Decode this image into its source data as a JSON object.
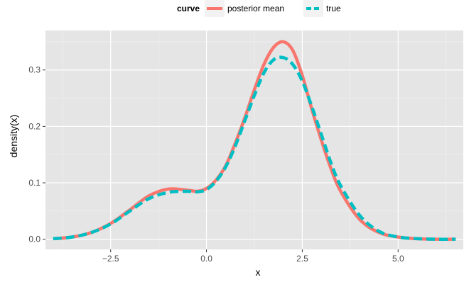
{
  "chart_data": {
    "type": "line",
    "xlabel": "x",
    "ylabel": "density(x)",
    "xlim": [
      -4.2,
      6.7
    ],
    "ylim": [
      -0.018,
      0.37
    ],
    "x_ticks": [
      -2.5,
      0.0,
      2.5,
      5.0
    ],
    "x_tick_labels": [
      "−2.5",
      "0.0",
      "2.5",
      "5.0"
    ],
    "y_ticks": [
      0.0,
      0.1,
      0.2,
      0.3
    ],
    "y_tick_labels": [
      "0.0",
      "0.1",
      "0.2",
      "0.3"
    ],
    "grid": true,
    "legend": {
      "title": "curve",
      "position": "top",
      "entries": [
        "posterior mean",
        "true"
      ]
    },
    "series": [
      {
        "name": "posterior mean",
        "color": "#F8766D",
        "dash": "solid",
        "x": [
          -4.0,
          -3.5,
          -3.0,
          -2.5,
          -2.0,
          -1.5,
          -1.0,
          -0.5,
          -0.25,
          0.0,
          0.25,
          0.5,
          0.75,
          1.0,
          1.25,
          1.5,
          1.75,
          2.0,
          2.25,
          2.5,
          2.75,
          3.0,
          3.25,
          3.5,
          4.0,
          4.5,
          5.0,
          5.5,
          6.0,
          6.5
        ],
        "y": [
          0.001,
          0.004,
          0.012,
          0.028,
          0.052,
          0.077,
          0.089,
          0.087,
          0.085,
          0.09,
          0.105,
          0.13,
          0.17,
          0.215,
          0.265,
          0.31,
          0.34,
          0.35,
          0.335,
          0.29,
          0.23,
          0.175,
          0.125,
          0.085,
          0.035,
          0.012,
          0.004,
          0.001,
          0.0,
          0.0
        ]
      },
      {
        "name": "true",
        "color": "#00BFC4",
        "dash": "dashed",
        "x": [
          -4.0,
          -3.5,
          -3.0,
          -2.5,
          -2.0,
          -1.5,
          -1.0,
          -0.5,
          -0.25,
          0.0,
          0.25,
          0.5,
          0.75,
          1.0,
          1.25,
          1.5,
          1.75,
          2.0,
          2.25,
          2.5,
          2.75,
          3.0,
          3.25,
          3.5,
          4.0,
          4.5,
          5.0,
          5.5,
          6.0,
          6.5
        ],
        "y": [
          0.001,
          0.004,
          0.012,
          0.027,
          0.05,
          0.072,
          0.083,
          0.085,
          0.084,
          0.088,
          0.103,
          0.128,
          0.165,
          0.21,
          0.255,
          0.295,
          0.318,
          0.322,
          0.31,
          0.28,
          0.235,
          0.185,
          0.135,
          0.095,
          0.042,
          0.014,
          0.004,
          0.001,
          0.0,
          0.0
        ]
      }
    ]
  }
}
